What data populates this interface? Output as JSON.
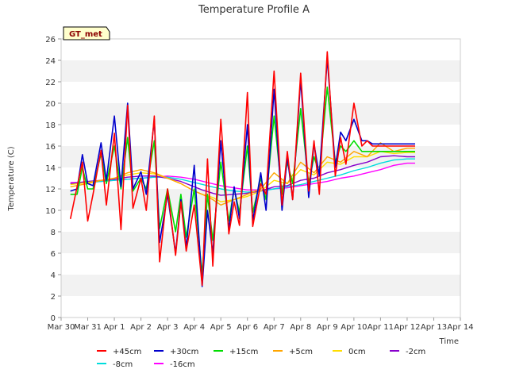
{
  "chart_data": {
    "type": "line",
    "title": "Temperature Profile A",
    "xlabel": "Time",
    "ylabel": "Temperature (C)",
    "badge": "GT_met",
    "ylim": [
      0,
      26
    ],
    "yticks": [
      0,
      2,
      4,
      6,
      8,
      10,
      12,
      14,
      16,
      18,
      20,
      22,
      24,
      26
    ],
    "xlim": [
      "Mar 30",
      "Apr 14"
    ],
    "xticks": [
      "Mar 30",
      "Mar 31",
      "Apr 1",
      "Apr 2",
      "Apr 3",
      "Apr 4",
      "Apr 5",
      "Apr 6",
      "Apr 7",
      "Apr 8",
      "Apr 9",
      "Apr 10",
      "Apr 11",
      "Apr 12",
      "Apr 13",
      "Apr 14"
    ],
    "grid": "horizontal bands",
    "legend_position": "bottom",
    "series": [
      {
        "name": "+45cm",
        "color": "#ff0000",
        "x": [
          0.35,
          0.6,
          0.8,
          1.0,
          1.2,
          1.5,
          1.7,
          2.0,
          2.25,
          2.5,
          2.7,
          3.0,
          3.2,
          3.5,
          3.7,
          4.0,
          4.3,
          4.5,
          4.7,
          5.0,
          5.3,
          5.5,
          5.7,
          6.0,
          6.3,
          6.5,
          6.7,
          7.0,
          7.2,
          7.5,
          7.7,
          8.0,
          8.3,
          8.5,
          8.7,
          9.0,
          9.3,
          9.5,
          9.7,
          10.0,
          10.3,
          10.5,
          10.7,
          11.0,
          11.3,
          11.5,
          11.7,
          12.0,
          12.3,
          12.5,
          12.7,
          13.0,
          13.3
        ],
        "y": [
          9.2,
          12.2,
          14.5,
          9.0,
          11.5,
          15.6,
          10.5,
          17.2,
          8.2,
          19.8,
          10.2,
          13.0,
          10.0,
          18.8,
          5.2,
          12.0,
          5.8,
          10.8,
          6.2,
          10.5,
          3.0,
          14.8,
          4.8,
          18.5,
          7.8,
          10.8,
          8.6,
          21.0,
          8.5,
          12.5,
          11.5,
          23.0,
          10.5,
          15.5,
          11.0,
          22.8,
          11.8,
          16.5,
          11.5,
          24.8,
          13.2,
          16.8,
          14.3,
          20.0,
          16.0,
          16.5,
          16.0,
          16.0,
          16.0,
          16.0,
          16.0,
          16.0,
          16.0
        ]
      },
      {
        "name": "+30cm",
        "color": "#0000cc",
        "x": [
          0.35,
          0.6,
          0.8,
          1.0,
          1.2,
          1.5,
          1.7,
          2.0,
          2.25,
          2.5,
          2.7,
          3.0,
          3.2,
          3.5,
          3.7,
          4.0,
          4.3,
          4.5,
          4.7,
          5.0,
          5.3,
          5.5,
          5.7,
          6.0,
          6.3,
          6.5,
          6.7,
          7.0,
          7.2,
          7.5,
          7.7,
          8.0,
          8.3,
          8.5,
          8.7,
          9.0,
          9.3,
          9.5,
          9.7,
          10.0,
          10.3,
          10.5,
          10.7,
          11.0,
          11.3,
          11.5,
          11.7,
          12.0,
          12.3,
          12.5,
          12.7,
          13.0,
          13.3
        ],
        "y": [
          11.8,
          12.0,
          15.2,
          12.5,
          12.3,
          16.3,
          12.8,
          18.8,
          12.2,
          20.0,
          12.0,
          13.6,
          11.5,
          18.5,
          7.0,
          11.5,
          6.0,
          11.0,
          6.5,
          14.2,
          2.9,
          10.0,
          6.0,
          16.5,
          8.2,
          12.2,
          9.2,
          18.0,
          9.0,
          13.5,
          10.0,
          21.3,
          10.0,
          15.0,
          11.0,
          22.2,
          11.2,
          16.2,
          13.2,
          24.2,
          14.0,
          17.3,
          16.5,
          18.5,
          16.5,
          16.5,
          16.2,
          16.2,
          16.2,
          16.2,
          16.2,
          16.2,
          16.2
        ]
      },
      {
        "name": "+15cm",
        "color": "#00dd00",
        "x": [
          0.35,
          0.6,
          0.8,
          1.0,
          1.2,
          1.5,
          1.7,
          2.0,
          2.25,
          2.5,
          2.7,
          3.0,
          3.2,
          3.5,
          3.7,
          4.0,
          4.3,
          4.5,
          4.7,
          5.0,
          5.3,
          5.5,
          5.7,
          6.0,
          6.3,
          6.5,
          6.7,
          7.0,
          7.2,
          7.5,
          7.7,
          8.0,
          8.3,
          8.5,
          8.7,
          9.0,
          9.3,
          9.5,
          9.7,
          10.0,
          10.3,
          10.5,
          10.7,
          11.0,
          11.3,
          11.5,
          11.7,
          12.0,
          12.3,
          12.5,
          12.7,
          13.0,
          13.3
        ],
        "y": [
          11.5,
          11.5,
          14.0,
          12.0,
          12.0,
          15.3,
          12.5,
          16.0,
          12.0,
          16.8,
          11.8,
          13.0,
          12.0,
          16.5,
          8.3,
          12.0,
          8.0,
          11.5,
          7.5,
          12.0,
          4.0,
          11.5,
          7.2,
          14.5,
          9.0,
          12.0,
          9.8,
          16.0,
          9.8,
          13.0,
          11.0,
          18.8,
          11.5,
          14.5,
          12.5,
          19.5,
          12.5,
          15.0,
          13.5,
          21.5,
          14.5,
          16.0,
          15.5,
          16.5,
          15.5,
          15.5,
          15.5,
          15.5,
          15.5,
          15.5,
          15.5,
          15.5,
          15.5
        ]
      },
      {
        "name": "+5cm",
        "color": "#ffa500",
        "x": [
          0.35,
          1.0,
          1.5,
          2.0,
          2.5,
          3.0,
          3.5,
          4.0,
          4.5,
          5.0,
          5.3,
          5.7,
          6.0,
          6.5,
          7.0,
          7.5,
          8.0,
          8.5,
          9.0,
          9.5,
          10.0,
          10.5,
          11.0,
          11.5,
          12.0,
          12.5,
          13.0,
          13.3
        ],
        "y": [
          12.2,
          12.5,
          12.8,
          13.0,
          13.5,
          13.8,
          13.5,
          13.0,
          12.5,
          11.8,
          11.5,
          11.0,
          10.5,
          11.0,
          11.5,
          12.0,
          13.5,
          12.5,
          14.5,
          13.5,
          15.0,
          14.5,
          15.5,
          15.0,
          16.3,
          15.5,
          15.8,
          15.8
        ]
      },
      {
        "name": "0cm",
        "color": "#ffdd00",
        "x": [
          0.35,
          1.0,
          1.5,
          2.0,
          2.5,
          3.0,
          3.5,
          4.0,
          4.5,
          5.0,
          5.3,
          5.7,
          6.0,
          6.5,
          7.0,
          7.5,
          8.0,
          8.5,
          9.0,
          9.5,
          10.0,
          10.5,
          11.0,
          11.5,
          12.0,
          12.5,
          13.0,
          13.3
        ],
        "y": [
          12.4,
          12.6,
          12.8,
          13.0,
          13.3,
          13.5,
          13.4,
          13.0,
          12.5,
          11.8,
          11.5,
          11.2,
          10.8,
          11.0,
          11.3,
          11.8,
          12.8,
          12.5,
          13.8,
          13.3,
          14.5,
          14.3,
          15.0,
          15.0,
          15.5,
          15.3,
          15.4,
          15.4
        ]
      },
      {
        "name": "-2cm",
        "color": "#8800cc",
        "x": [
          0.35,
          1.0,
          1.5,
          2.0,
          2.5,
          3.0,
          3.5,
          4.0,
          4.5,
          5.0,
          5.3,
          5.7,
          6.0,
          6.5,
          7.0,
          7.5,
          8.0,
          8.5,
          9.0,
          9.5,
          10.0,
          10.5,
          11.0,
          11.5,
          12.0,
          12.5,
          13.0,
          13.3
        ],
        "y": [
          12.5,
          12.7,
          12.8,
          12.9,
          13.1,
          13.2,
          13.2,
          13.0,
          12.7,
          12.2,
          11.9,
          11.6,
          11.4,
          11.5,
          11.6,
          11.8,
          12.2,
          12.3,
          12.8,
          13.0,
          13.5,
          13.8,
          14.2,
          14.5,
          15.0,
          15.1,
          15.0,
          15.0
        ]
      },
      {
        "name": "-8cm",
        "color": "#00dddd",
        "x": [
          0.35,
          1.0,
          1.5,
          2.0,
          2.5,
          3.0,
          3.5,
          4.0,
          4.5,
          5.0,
          5.5,
          6.0,
          6.5,
          7.0,
          7.5,
          8.0,
          8.5,
          9.0,
          9.5,
          10.0,
          10.5,
          11.0,
          11.5,
          12.0,
          12.5,
          13.0,
          13.3
        ],
        "y": [
          12.5,
          12.6,
          12.7,
          12.8,
          12.9,
          13.0,
          13.1,
          13.1,
          12.9,
          12.6,
          12.3,
          12.0,
          11.8,
          11.7,
          11.8,
          12.0,
          12.2,
          12.4,
          12.7,
          13.0,
          13.3,
          13.7,
          14.0,
          14.4,
          14.7,
          14.8,
          14.8
        ]
      },
      {
        "name": "-16cm",
        "color": "#ff00ff",
        "x": [
          0.35,
          1.0,
          1.5,
          2.0,
          2.5,
          3.0,
          3.5,
          4.0,
          4.5,
          5.0,
          5.5,
          6.0,
          6.5,
          7.0,
          7.5,
          8.0,
          8.5,
          9.0,
          9.5,
          10.0,
          10.5,
          11.0,
          11.5,
          12.0,
          12.5,
          13.0,
          13.3
        ],
        "y": [
          12.6,
          12.6,
          12.7,
          12.8,
          12.9,
          13.0,
          13.1,
          13.2,
          13.1,
          12.9,
          12.6,
          12.3,
          12.1,
          11.9,
          11.9,
          12.0,
          12.1,
          12.3,
          12.5,
          12.7,
          13.0,
          13.2,
          13.5,
          13.8,
          14.2,
          14.4,
          14.4
        ]
      }
    ]
  }
}
